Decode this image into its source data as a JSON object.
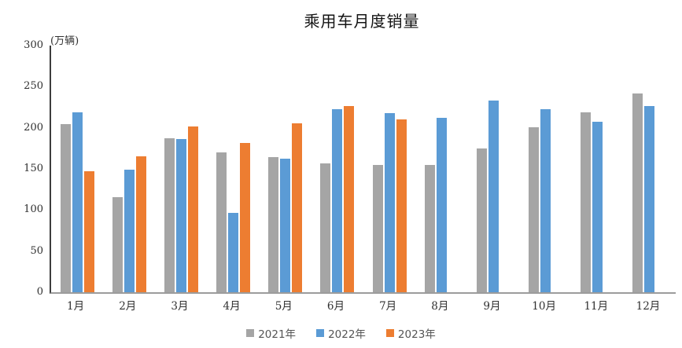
{
  "chart": {
    "title": "乘用车月度销量",
    "unit_label": "(万辆)"
  },
  "chart_data": {
    "type": "bar",
    "title": "乘用车月度销量",
    "ylabel": "(万辆)",
    "xlabel": "",
    "categories": [
      "1月",
      "2月",
      "3月",
      "4月",
      "5月",
      "6月",
      "7月",
      "8月",
      "9月",
      "10月",
      "11月",
      "12月"
    ],
    "series": [
      {
        "name": "2021年",
        "color": "#A5A5A5",
        "values": [
          204.5,
          115.6,
          187.4,
          170.4,
          164.6,
          156.9,
          155.1,
          155.2,
          175.1,
          200.7,
          219.2,
          242.2
        ]
      },
      {
        "name": "2022年",
        "color": "#5B9BD5",
        "values": [
          218.6,
          148.7,
          186.4,
          96.5,
          162.3,
          222.2,
          217.4,
          212.5,
          233.2,
          223.1,
          207.5,
          226.3
        ]
      },
      {
        "name": "2023年",
        "color": "#ED7D31",
        "values": [
          146.9,
          165.3,
          201.7,
          181.1,
          205.1,
          226.8,
          210.0,
          null,
          null,
          null,
          null,
          null
        ]
      }
    ],
    "ylim": [
      0,
      300
    ],
    "yticks": [
      0,
      50,
      100,
      150,
      200,
      250,
      300
    ],
    "grid": false,
    "legend_position": "bottom"
  }
}
